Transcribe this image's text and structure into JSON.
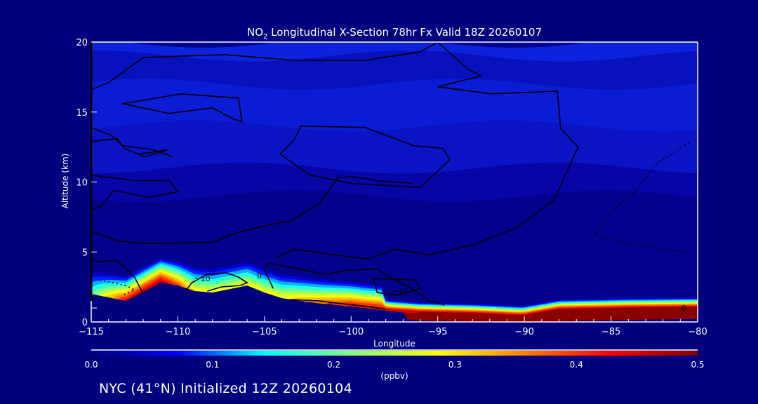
{
  "chart_data": {
    "type": "heatmap",
    "title": "NO2 Longitudinal X-Section 78hr  Fx Valid 18Z 20260107",
    "title_parts": {
      "species": "NO",
      "subscript": "2",
      "rest": " Longitudinal X-Section 78hr  Fx Valid 18Z 20260107"
    },
    "xlabel": "Longitude",
    "ylabel": "Altitude (km)",
    "xlim": [
      -115,
      -80
    ],
    "ylim": [
      0,
      20
    ],
    "x_ticks": [
      -115,
      -110,
      -105,
      -100,
      -95,
      -90,
      -85,
      -80
    ],
    "x_tick_labels": [
      "−115",
      "−110",
      "−105",
      "−100",
      "−95",
      "−90",
      "−85",
      "−80"
    ],
    "x_minor_step": 1,
    "y_ticks": [
      0,
      5,
      10,
      15,
      20
    ],
    "y_tick_labels": [
      "0",
      "5",
      "10",
      "15",
      "20"
    ],
    "y_minor_step": 1,
    "colorbar": {
      "label": "(ppbv)",
      "range": [
        0.0,
        0.5
      ],
      "ticks": [
        "0.0",
        "0.1",
        "0.2",
        "0.3",
        "0.4",
        "0.5"
      ],
      "colors": [
        "#00007f",
        "#0000ff",
        "#00ffff",
        "#80ff80",
        "#ffff00",
        "#ff8000",
        "#ff0000",
        "#800000"
      ]
    },
    "terrain_profile": [
      [
        -115,
        2.0
      ],
      [
        -113,
        1.5
      ],
      [
        -111,
        2.8
      ],
      [
        -110,
        2.6
      ],
      [
        -109,
        2.2
      ],
      [
        -108,
        2.1
      ],
      [
        -106,
        2.6
      ],
      [
        -105,
        2.1
      ],
      [
        -104,
        1.7
      ],
      [
        -102,
        1.35
      ],
      [
        -100,
        1.1
      ],
      [
        -97.6,
        0.75
      ],
      [
        -96,
        0.6
      ],
      [
        -92.7,
        0.5
      ],
      [
        -90.1,
        0.35
      ],
      [
        -88,
        0.8
      ],
      [
        -84,
        0.9
      ],
      [
        -80,
        0.95
      ]
    ],
    "surface_no2_ppbv_profile": [
      [
        -115,
        0.2
      ],
      [
        -113,
        0.45
      ],
      [
        -111,
        0.5
      ],
      [
        -109,
        0.3
      ],
      [
        -106,
        0.3
      ],
      [
        -104,
        0.3
      ],
      [
        -100,
        0.45
      ],
      [
        -96,
        0.5
      ],
      [
        -91,
        0.5
      ],
      [
        -88,
        0.5
      ],
      [
        -84,
        0.5
      ],
      [
        -80,
        0.5
      ]
    ],
    "upper_bands_ppbv": [
      {
        "alt": [
          0,
          9
        ],
        "value": 0.01
      },
      {
        "alt": [
          9,
          11
        ],
        "value": 0.03
      },
      {
        "alt": [
          11,
          14
        ],
        "value": 0.05
      },
      {
        "alt": [
          14,
          17
        ],
        "value": 0.06
      },
      {
        "alt": [
          17,
          19
        ],
        "value": 0.04
      },
      {
        "alt": [
          19,
          20
        ],
        "value": 0.07
      }
    ],
    "contours": [
      {
        "style": "solid",
        "points": [
          [
            -115,
            16.6
          ],
          [
            -114,
            17.1
          ],
          [
            -112,
            18.9
          ],
          [
            -107.3,
            19.1
          ],
          [
            -103.3,
            18.7
          ],
          [
            -99.2,
            18.7
          ],
          [
            -96,
            19.3
          ],
          [
            -95,
            20
          ]
        ]
      },
      {
        "style": "solid",
        "points": [
          [
            -95,
            20
          ],
          [
            -93.3,
            18.1
          ],
          [
            -92.5,
            17.6
          ],
          [
            -95,
            16.8
          ],
          [
            -91.9,
            16.3
          ],
          [
            -88.1,
            16.5
          ],
          [
            -87.9,
            13.8
          ],
          [
            -86.9,
            12.5
          ],
          [
            -88.3,
            8.7
          ],
          [
            -90.5,
            6.7
          ],
          [
            -93,
            5.5
          ],
          [
            -95.5,
            4.8
          ],
          [
            -97.5,
            5.2
          ],
          [
            -99,
            4.5
          ],
          [
            -101,
            4.8
          ],
          [
            -103.3,
            5.2
          ],
          [
            -104.3,
            4.6
          ]
        ]
      },
      {
        "style": "solid",
        "points": [
          [
            -113.2,
            15.6
          ],
          [
            -109.8,
            16.3
          ],
          [
            -106.5,
            16.0
          ],
          [
            -106.3,
            14.3
          ],
          [
            -106.8,
            14.5
          ],
          [
            -108,
            15.3
          ],
          [
            -110.5,
            14.9
          ],
          [
            -113.2,
            15.6
          ]
        ]
      },
      {
        "style": "solid",
        "points": [
          [
            -102.9,
            14
          ],
          [
            -99.2,
            13.9
          ],
          [
            -96.4,
            12.6
          ],
          [
            -94.7,
            12.4
          ],
          [
            -94.3,
            11.6
          ],
          [
            -96,
            9.6
          ],
          [
            -100,
            9.9
          ],
          [
            -102.4,
            10.5
          ],
          [
            -104.1,
            12
          ],
          [
            -103.3,
            13
          ],
          [
            -102.9,
            14
          ]
        ]
      },
      {
        "style": "solid",
        "points": [
          [
            -115,
            13.9
          ],
          [
            -113.8,
            13.3
          ],
          [
            -113.2,
            12.6
          ],
          [
            -111.4,
            12.3
          ],
          [
            -110.3,
            11.8
          ]
        ]
      },
      {
        "style": "solid",
        "points": [
          [
            -115,
            12.9
          ],
          [
            -113.5,
            13.1
          ],
          [
            -113.1,
            12.4
          ],
          [
            -111.9,
            11.8
          ],
          [
            -110.6,
            12.3
          ],
          [
            -112.2,
            12.0
          ]
        ]
      },
      {
        "style": "solid",
        "points": [
          [
            -115,
            10.5
          ],
          [
            -112.5,
            10.1
          ],
          [
            -110.5,
            10.1
          ],
          [
            -110,
            9.3
          ],
          [
            -111.7,
            8.9
          ],
          [
            -113.7,
            9.4
          ],
          [
            -114.4,
            8.3
          ],
          [
            -115,
            8.0
          ]
        ]
      },
      {
        "style": "solid",
        "points": [
          [
            -115,
            6.5
          ],
          [
            -113.5,
            5.8
          ],
          [
            -112,
            5.6
          ],
          [
            -108,
            5.7
          ],
          [
            -106.5,
            6.4
          ],
          [
            -104.5,
            7.0
          ],
          [
            -103.5,
            7.2
          ],
          [
            -101.8,
            8.5
          ],
          [
            -100.8,
            10.3
          ],
          [
            -100,
            10.4
          ],
          [
            -98.5,
            10.1
          ],
          [
            -96.5,
            9.9
          ]
        ]
      },
      {
        "style": "solid",
        "points": [
          [
            -115,
            4.5
          ],
          [
            -114.5,
            4.3
          ],
          [
            -113.5,
            4.4
          ],
          [
            -112.5,
            3.2
          ],
          [
            -112,
            2.0
          ]
        ]
      },
      {
        "style": "solid",
        "points": [
          [
            -109.5,
            2.3
          ],
          [
            -109.2,
            2.8
          ],
          [
            -108.3,
            3.4
          ],
          [
            -107.2,
            3.5
          ],
          [
            -106.5,
            3.2
          ],
          [
            -106,
            2.8
          ],
          [
            -106.4,
            2.6
          ],
          [
            -107.5,
            2.5
          ],
          [
            -108.3,
            2.2
          ]
        ]
      },
      {
        "style": "solid",
        "points": [
          [
            -104.5,
            2.4
          ],
          [
            -105,
            3.7
          ],
          [
            -104.8,
            4.2
          ],
          [
            -103.5,
            3.9
          ],
          [
            -101.5,
            3.4
          ],
          [
            -100.2,
            3.7
          ],
          [
            -98.5,
            3.8
          ],
          [
            -97.8,
            3.2
          ],
          [
            -96.5,
            2.4
          ],
          [
            -95.5,
            1.5
          ],
          [
            -94.6,
            1.2
          ]
        ]
      },
      {
        "style": "solid",
        "points": [
          [
            -98.7,
            3.1
          ],
          [
            -96.3,
            3.0
          ],
          [
            -96.0,
            2.4
          ],
          [
            -97.3,
            1.9
          ],
          [
            -98.5,
            2.1
          ],
          [
            -98.7,
            3.1
          ]
        ]
      },
      {
        "style": "solid",
        "points": [
          [
            -103.5,
            1.6
          ],
          [
            -101.8,
            1.5
          ],
          [
            -100.5,
            1.3
          ],
          [
            -99,
            1.1
          ],
          [
            -98,
            0.9
          ]
        ]
      },
      {
        "style": "dotted",
        "points": [
          [
            -80.5,
            12.8
          ],
          [
            -82.5,
            11.2
          ],
          [
            -83.5,
            9.5
          ],
          [
            -85,
            7.8
          ],
          [
            -86,
            6.2
          ],
          [
            -84,
            5.6
          ],
          [
            -82,
            5.2
          ],
          [
            -80.5,
            5.0
          ]
        ]
      },
      {
        "style": "dotted",
        "points": [
          [
            -114.5,
            3.0
          ],
          [
            -113,
            2.6
          ],
          [
            -112.5,
            2.3
          ],
          [
            -113.2,
            1.9
          ]
        ]
      }
    ],
    "contour_labels": [
      {
        "text": "−10",
        "lon": -108.6,
        "alt": 2.9
      },
      {
        "text": "0",
        "lon": -105.3,
        "alt": 3.1
      },
      {
        "text": "−10",
        "lon": -97.2,
        "alt": 2.0
      },
      {
        "text": "0",
        "lon": -101.2,
        "alt": 1.0
      },
      {
        "text": "0",
        "lon": -80.8,
        "alt": 0.8
      }
    ]
  },
  "footer": "NYC (41°N) Initialized 12Z 20260104"
}
